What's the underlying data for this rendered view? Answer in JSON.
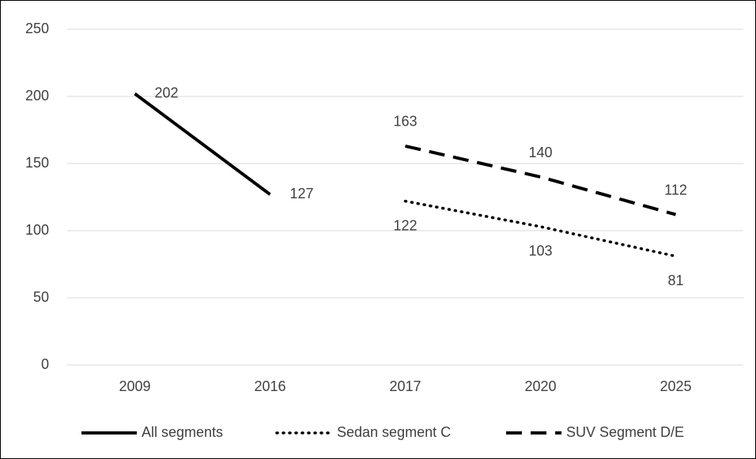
{
  "chart_data": {
    "type": "line",
    "categories": [
      "2009",
      "2016",
      "2017",
      "2020",
      "2025"
    ],
    "series": [
      {
        "name": "All segments",
        "color": "#000000",
        "dash": "solid",
        "values": [
          202,
          127,
          null,
          null,
          null
        ]
      },
      {
        "name": "Sedan segment C",
        "color": "#000000",
        "dash": "dotted",
        "values": [
          null,
          null,
          122,
          103,
          81
        ]
      },
      {
        "name": "SUV Segment D/E",
        "color": "#000000",
        "dash": "dashed",
        "values": [
          null,
          null,
          163,
          140,
          112
        ]
      }
    ],
    "ylim": [
      0,
      250
    ],
    "yticks": [
      0,
      50,
      100,
      150,
      200,
      250
    ],
    "grid": true,
    "legend": "bottom",
    "data_labels": true
  }
}
